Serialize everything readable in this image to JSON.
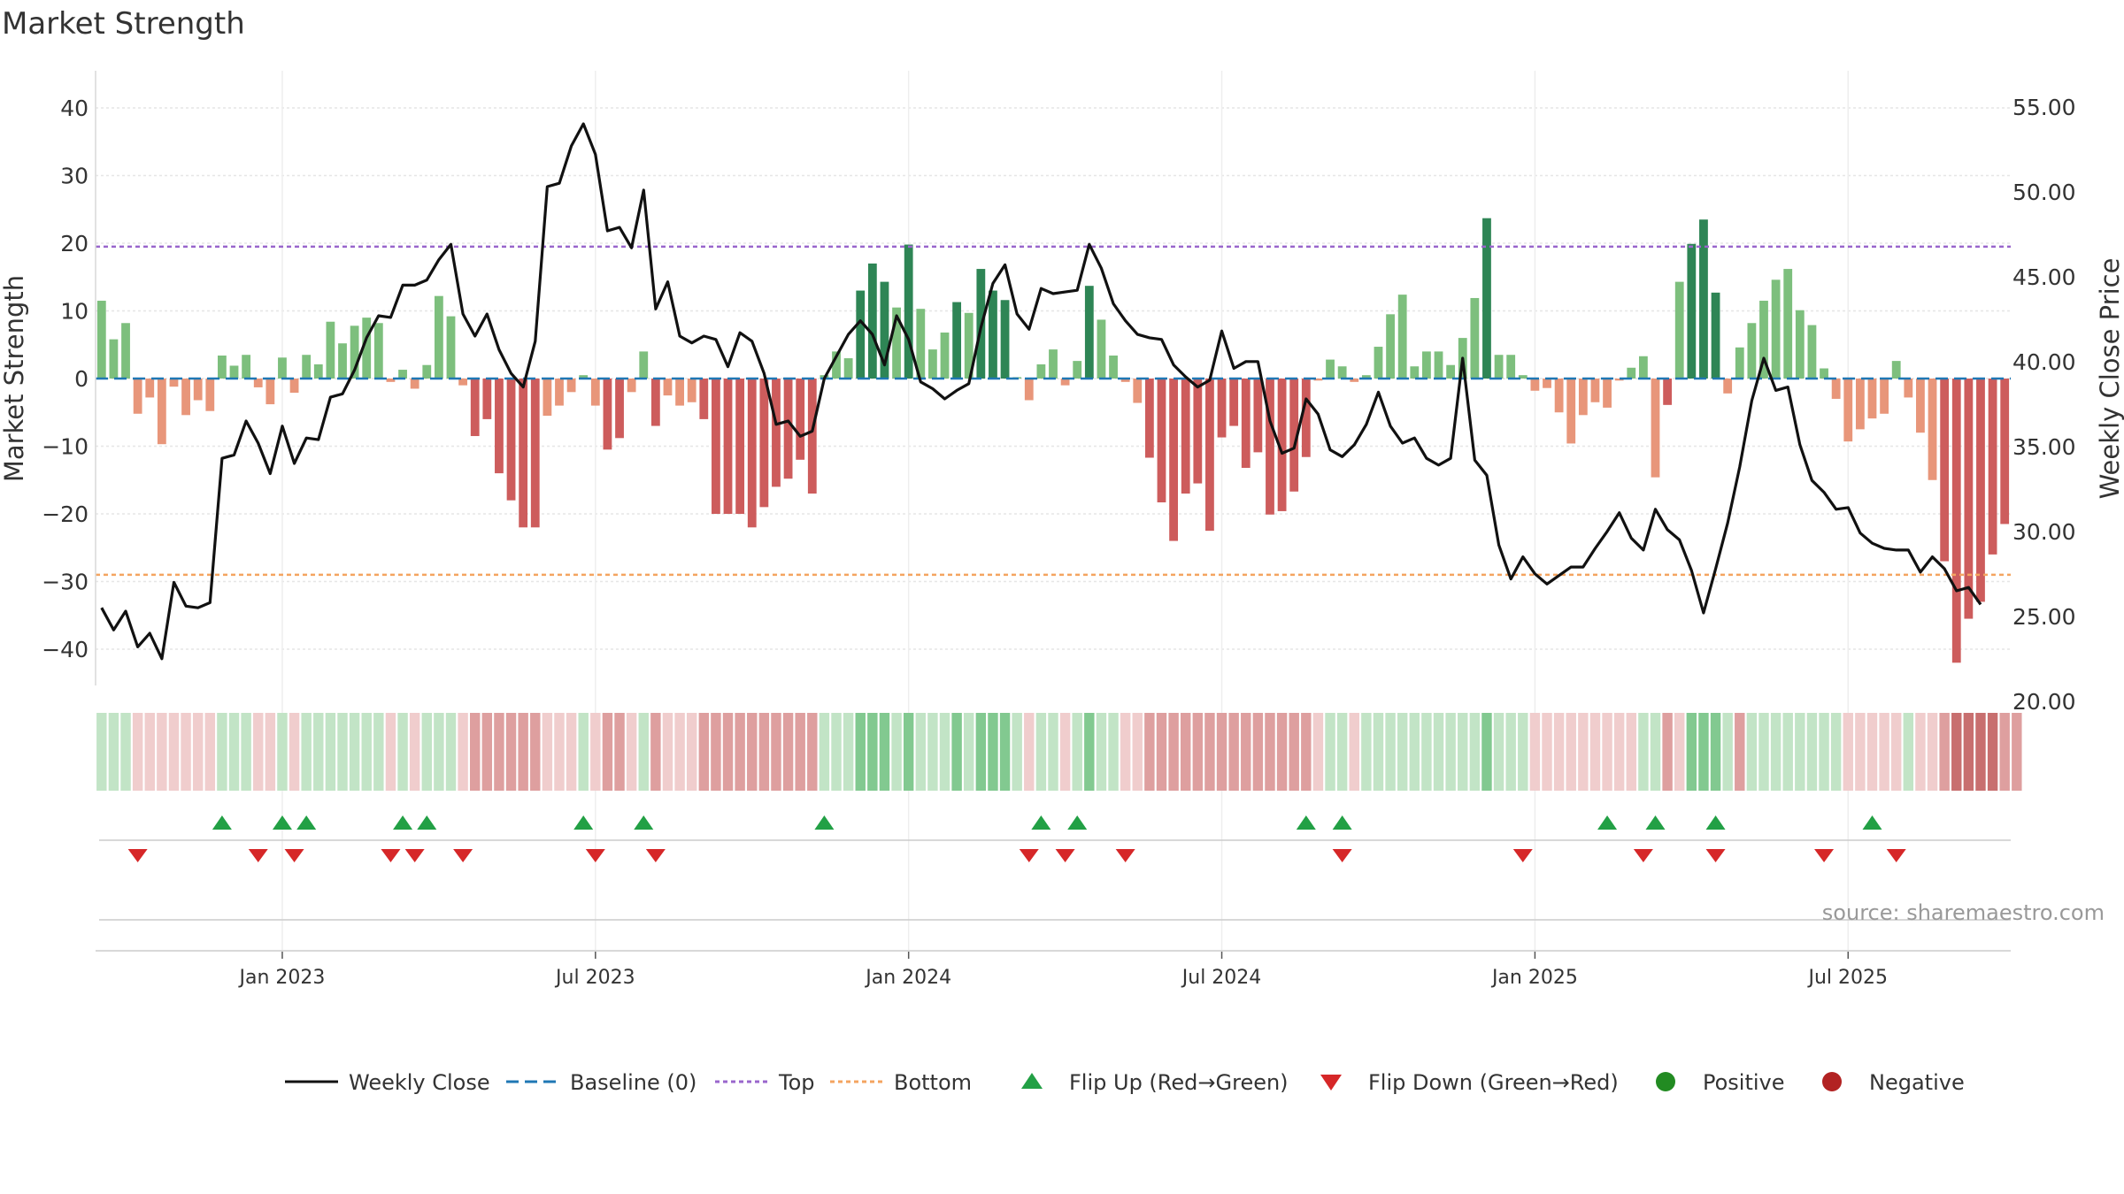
{
  "title": "Market Strength",
  "source": "source: sharemaestro.com",
  "colors": {
    "strong_green": "#2e8555",
    "light_green": "#7dbf7d",
    "strong_red": "#cd5c5c",
    "light_red": "#e8967a",
    "top_line": "#9966cc",
    "bottom_line": "#f4a460",
    "baseline": "#1f77b4",
    "close_line": "#111111",
    "flip_up": "#22a045",
    "flip_down": "#d62728",
    "positive": "#228b22",
    "negative": "#b22222"
  },
  "legend": [
    {
      "key": "close",
      "label": "Weekly Close"
    },
    {
      "key": "baseline",
      "label": "Baseline (0)"
    },
    {
      "key": "top",
      "label": "Top"
    },
    {
      "key": "bottom",
      "label": "Bottom"
    },
    {
      "key": "flip_up",
      "label": "Flip Up (Red→Green)"
    },
    {
      "key": "flip_down",
      "label": "Flip Down (Green→Red)"
    },
    {
      "key": "positive",
      "label": "Positive"
    },
    {
      "key": "negative",
      "label": "Negative"
    }
  ],
  "chart_data": {
    "type": "bar",
    "title": "Market Strength",
    "ylabel": "Market Strength",
    "y2label": "Weekly Close Price",
    "ylim": [
      -45,
      45
    ],
    "y2lim": [
      19,
      56
    ],
    "yticks": [
      40,
      30,
      20,
      10,
      0,
      -10,
      -20,
      -30,
      -40
    ],
    "yticklabels": [
      "40",
      "30",
      "20",
      "10",
      "0",
      "−10",
      "−20",
      "−30",
      "−40"
    ],
    "y2ticks": [
      55,
      50,
      45,
      40,
      35,
      30,
      25,
      20
    ],
    "y2ticklabels": [
      "55.00",
      "50.00",
      "45.00",
      "40.00",
      "35.00",
      "30.00",
      "25.00",
      "20.00"
    ],
    "xtick_weeks": [
      15,
      41,
      67,
      93,
      119,
      145
    ],
    "xticklabels": [
      "Jan 2023",
      "Jul 2023",
      "Jan 2024",
      "Jul 2024",
      "Jan 2025",
      "Jul 2025"
    ],
    "top_level": 19.5,
    "bottom_level": -29,
    "grid": true,
    "legend_position": "bottom",
    "strength": [
      11.5,
      5.8,
      8.2,
      -5.2,
      -2.8,
      -9.7,
      -1.2,
      -5.4,
      -3.2,
      -4.8,
      3.4,
      1.9,
      3.5,
      -1.3,
      -3.8,
      3.1,
      -2.1,
      3.5,
      2.1,
      8.4,
      5.2,
      7.8,
      9.0,
      8.2,
      -0.5,
      1.3,
      -1.5,
      2.0,
      12.2,
      9.2,
      -1.0,
      -8.5,
      -6.0,
      -14.0,
      -18.0,
      -22.0,
      -22.0,
      -5.5,
      -4.0,
      -2.0,
      0.5,
      -4.0,
      -10.5,
      -8.8,
      -2.0,
      4.0,
      -7.0,
      -2.5,
      -4.0,
      -3.5,
      -6.0,
      -20.0,
      -20.0,
      -20.0,
      -22.0,
      -19.0,
      -16.0,
      -14.8,
      -12.0,
      -17.0,
      0.5,
      4.0,
      3.0,
      13.0,
      17.0,
      14.3,
      10.5,
      19.8,
      10.3,
      4.3,
      6.8,
      11.3,
      9.7,
      16.2,
      13.0,
      11.6,
      0.2,
      -3.2,
      2.1,
      4.3,
      -1.0,
      2.6,
      13.7,
      8.7,
      3.4,
      -0.5,
      -3.6,
      -11.7,
      -18.3,
      -24.0,
      -17.0,
      -15.5,
      -22.5,
      -8.7,
      -7.0,
      -13.2,
      -10.9,
      -20.1,
      -19.6,
      -16.7,
      -11.6,
      -0.3,
      2.8,
      1.8,
      -0.5,
      0.5,
      4.7,
      9.5,
      12.4,
      1.8,
      4.0,
      4.0,
      2.0,
      6.0,
      11.9,
      23.7,
      3.5,
      3.5,
      0.5,
      -1.8,
      -1.4,
      -5.0,
      -9.6,
      -5.4,
      -3.5,
      -4.3,
      -0.3,
      1.6,
      3.3,
      -14.6,
      -3.9,
      14.3,
      19.9,
      23.5,
      12.7,
      -2.2,
      4.6,
      8.2,
      11.5,
      14.6,
      16.2,
      10.1,
      7.9,
      1.5,
      -3.0,
      -9.3,
      -7.5,
      -5.9,
      -5.2,
      2.6,
      -2.8,
      -8.0,
      -15.0,
      -27.0,
      -42.0,
      -35.5,
      -33.0,
      -26.0,
      -21.5
    ],
    "close": [
      25.5,
      24.2,
      25.3,
      23.2,
      24.0,
      22.5,
      27.0,
      25.6,
      25.5,
      25.8,
      34.3,
      34.5,
      36.5,
      35.2,
      33.4,
      36.2,
      34.0,
      35.5,
      35.4,
      37.9,
      38.1,
      39.5,
      41.4,
      42.7,
      42.6,
      44.5,
      44.5,
      44.8,
      46.0,
      46.9,
      42.8,
      41.5,
      42.8,
      40.7,
      39.3,
      38.5,
      41.2,
      50.3,
      50.5,
      52.7,
      54.0,
      52.2,
      47.7,
      47.9,
      46.7,
      50.1,
      43.1,
      44.7,
      41.5,
      41.1,
      41.5,
      41.3,
      39.7,
      41.7,
      41.2,
      39.3,
      36.3,
      36.5,
      35.6,
      35.9,
      39.0,
      40.3,
      41.6,
      42.4,
      41.6,
      39.8,
      42.7,
      41.3,
      38.8,
      38.4,
      37.8,
      38.3,
      38.7,
      42.0,
      44.6,
      45.7,
      42.8,
      41.9,
      44.3,
      44.0,
      44.1,
      44.2,
      46.9,
      45.5,
      43.4,
      42.4,
      41.6,
      41.4,
      41.3,
      39.8,
      39.1,
      38.5,
      38.9,
      41.8,
      39.6,
      40.0,
      40.0,
      36.5,
      34.6,
      34.9,
      37.8,
      36.9,
      34.8,
      34.4,
      35.1,
      36.3,
      38.2,
      36.2,
      35.2,
      35.5,
      34.3,
      33.9,
      34.3,
      40.2,
      34.2,
      33.3,
      29.2,
      27.2,
      28.5,
      27.5,
      26.9,
      27.4,
      27.9,
      27.9,
      29.0,
      30.0,
      31.1,
      29.6,
      28.9,
      31.3,
      30.1,
      29.5,
      27.7,
      25.2,
      27.8,
      30.5,
      33.8,
      37.7,
      40.2,
      38.3,
      38.5,
      35.1,
      33.0,
      32.3,
      31.3,
      31.4,
      29.9,
      29.3,
      29.0,
      28.9,
      28.9,
      27.6,
      28.5,
      27.8,
      26.5,
      26.7,
      25.7
    ],
    "band": [
      1,
      1,
      1,
      -1,
      -1,
      -1,
      -1,
      -1,
      -1,
      -1,
      1,
      1,
      1,
      -1,
      -1,
      1,
      -1,
      1,
      1,
      1,
      1,
      1,
      1,
      1,
      -1,
      1,
      -1,
      1,
      1,
      1,
      -1,
      -2,
      -2,
      -2,
      -2,
      -2,
      -2,
      -1,
      -1,
      -1,
      1,
      -1,
      -2,
      -2,
      -1,
      1,
      -2,
      -1,
      -1,
      -1,
      -2,
      -2,
      -2,
      -2,
      -2,
      -2,
      -2,
      -2,
      -2,
      -2,
      1,
      1,
      1,
      2,
      2,
      2,
      1,
      2,
      1,
      1,
      1,
      2,
      1,
      2,
      2,
      2,
      1,
      -1,
      1,
      1,
      -1,
      1,
      2,
      1,
      1,
      -1,
      -1,
      -2,
      -2,
      -2,
      -2,
      -2,
      -2,
      -2,
      -2,
      -2,
      -2,
      -2,
      -2,
      -2,
      -2,
      -1,
      1,
      1,
      -1,
      1,
      1,
      1,
      1,
      1,
      1,
      1,
      1,
      1,
      1,
      2,
      1,
      1,
      1,
      -1,
      -1,
      -1,
      -1,
      -1,
      -1,
      -1,
      -1,
      -1,
      1,
      1,
      -2,
      -1,
      2,
      2,
      2,
      1,
      -2,
      1,
      1,
      1,
      1,
      1,
      1,
      1,
      1,
      -1,
      -1,
      -1,
      -1,
      -1,
      1,
      -1,
      -1,
      -2,
      -3,
      -3,
      -3,
      -3,
      -2,
      -2
    ],
    "flip_up_weeks": [
      10,
      15,
      17,
      25,
      27,
      40,
      45,
      60,
      78,
      81,
      100,
      103,
      125,
      129,
      134,
      147
    ],
    "flip_down_weeks": [
      3,
      13,
      16,
      24,
      26,
      30,
      41,
      46,
      77,
      80,
      85,
      103,
      118,
      128,
      134,
      143,
      149
    ]
  }
}
